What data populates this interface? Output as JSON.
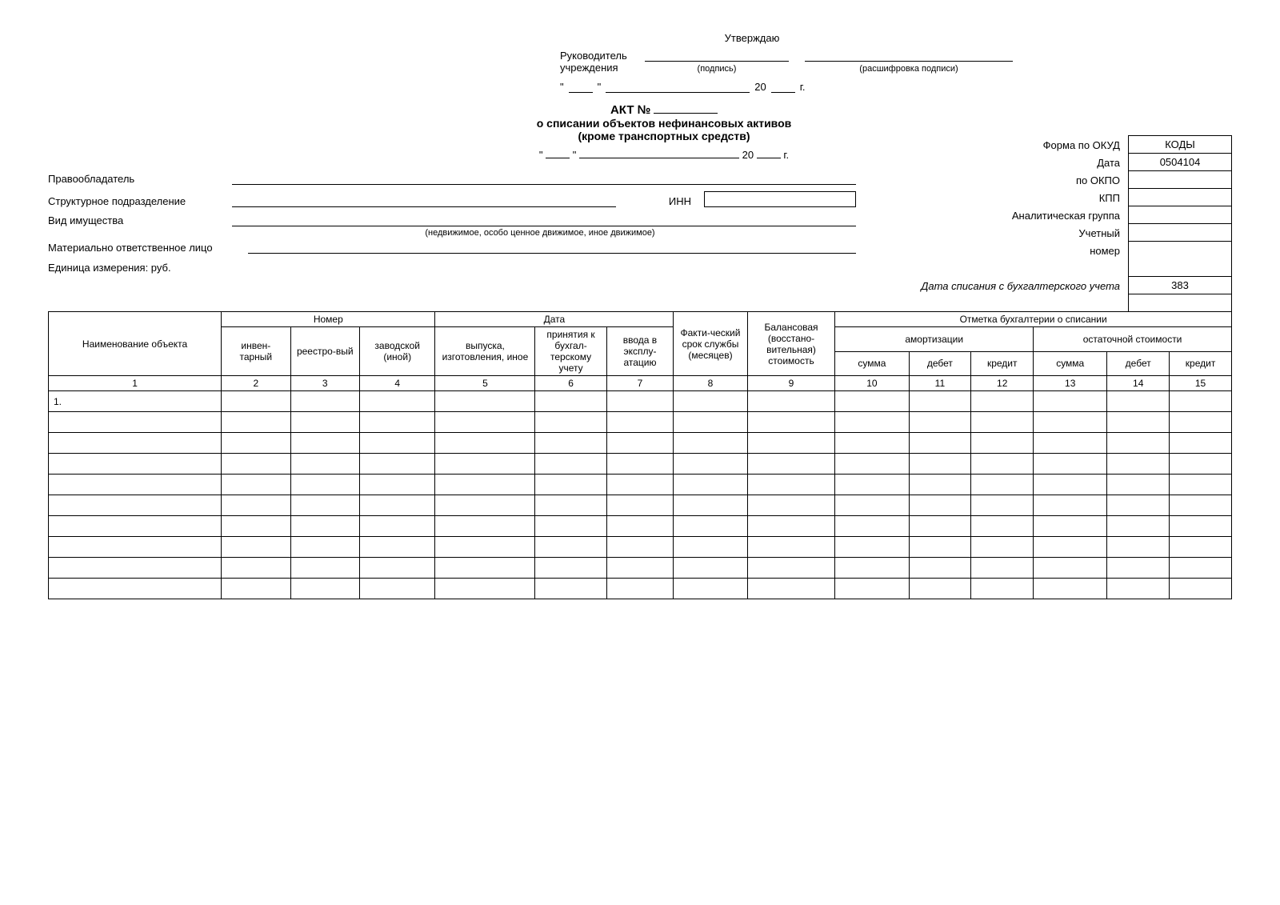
{
  "approval": {
    "title": "Утверждаю",
    "head_label1": "Руководитель",
    "head_label2": "учреждения",
    "signature_hint": "(подпись)",
    "decoded_hint": "(расшифровка подписи)",
    "century": "20",
    "year_suffix": "г."
  },
  "doc_title": {
    "act": "АКТ №",
    "line1": "о списании объектов нефинансовых активов",
    "line2": "(кроме транспортных средств)",
    "century": "20",
    "year_suffix": "г."
  },
  "codes": {
    "header": "КОДЫ",
    "okud_value": "0504104",
    "unit_value": "383",
    "labels": {
      "okud": "Форма по ОКУД",
      "date": "Дата",
      "okpo": "по ОКПО",
      "kpp": "КПП",
      "analytic": "Аналитическая группа",
      "account": "Учетный",
      "account2": "номер"
    }
  },
  "fields": {
    "holder": "Правообладатель",
    "division": "Структурное подразделение",
    "inn": "ИНН",
    "property_type": "Вид имущества",
    "property_hint": "(недвижимое, особо ценное движимое, иное движимое)",
    "responsible": "Материально ответственное лицо",
    "unit": "Единица измерения: руб.",
    "writeoff_date": "Дата списания с бухгалтерского учета"
  },
  "table": {
    "headers": {
      "name": "Наименование объекта",
      "number_group": "Номер",
      "num_inv": "инвен-тарный",
      "num_reg": "реестро-вый",
      "num_factory": "заводской (иной)",
      "date_group": "Дата",
      "date_release": "выпуска, изготовления, иное",
      "date_accept": "принятия к бухгал-терскому учету",
      "date_start": "ввода в эксплу-атацию",
      "actual": "Факти-ческий срок службы (месяцев)",
      "balance": "Балансовая (восстано-вительная) стоимость",
      "mark_group": "Отметка бухгалтерии о списании",
      "amort": "амортизации",
      "residual": "остаточной стоимости",
      "sum": "сумма",
      "debit": "дебет",
      "credit": "кредит"
    },
    "col_numbers": [
      "1",
      "2",
      "3",
      "4",
      "5",
      "6",
      "7",
      "8",
      "9",
      "10",
      "11",
      "12",
      "13",
      "14",
      "15"
    ],
    "first_row_label": "1.",
    "empty_rows": 9,
    "col_widths": [
      "150",
      "60",
      "60",
      "60",
      "80",
      "62",
      "58",
      "62",
      "76",
      "64",
      "54",
      "54",
      "64",
      "54",
      "54"
    ]
  },
  "colors": {
    "bg": "#ffffff",
    "text": "#000000",
    "border": "#000000"
  }
}
